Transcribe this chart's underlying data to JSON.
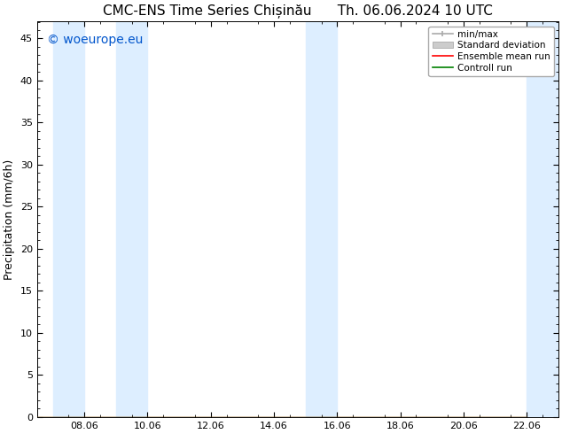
{
  "title": "CMC-ENS Time Series Chișinău      Th. 06.06.2024 10 UTC",
  "ylabel": "Precipitation (mm/6h)",
  "xlabel": "",
  "ylim": [
    0,
    47
  ],
  "yticks": [
    0,
    5,
    10,
    15,
    20,
    25,
    30,
    35,
    40,
    45
  ],
  "xtick_labels": [
    "08.06",
    "10.06",
    "12.06",
    "14.06",
    "16.06",
    "18.06",
    "20.06",
    "22.06"
  ],
  "xtick_positions": [
    8,
    10,
    12,
    14,
    16,
    18,
    20,
    22
  ],
  "xlim": [
    6.5,
    23.0
  ],
  "shaded_bands": [
    [
      7.0,
      8.0
    ],
    [
      9.0,
      10.0
    ],
    [
      15.0,
      16.0
    ],
    [
      22.0,
      23.0
    ]
  ],
  "shade_color": "#ddeeff",
  "watermark_text": "© woeurope.eu",
  "watermark_color": "#0055cc",
  "legend_items": [
    {
      "label": "min/max",
      "color": "#aaaaaa"
    },
    {
      "label": "Standard deviation",
      "color": "#cccccc"
    },
    {
      "label": "Ensemble mean run",
      "color": "red"
    },
    {
      "label": "Controll run",
      "color": "green"
    }
  ],
  "bg_color": "#ffffff",
  "title_fontsize": 11,
  "axis_fontsize": 9,
  "tick_fontsize": 8,
  "watermark_fontsize": 10,
  "ensemble_mean": [
    0,
    0,
    0,
    0,
    0,
    0,
    0,
    0,
    0,
    0,
    0,
    0,
    0,
    0,
    0,
    0,
    0
  ],
  "control_run": [
    0,
    0,
    0,
    0,
    0,
    0,
    0,
    0,
    0,
    0,
    0,
    0,
    0,
    0,
    0,
    0,
    0
  ],
  "x_series": [
    6.5,
    7,
    8,
    9,
    10,
    11,
    12,
    13,
    14,
    15,
    16,
    17,
    18,
    19,
    20,
    21,
    22
  ]
}
